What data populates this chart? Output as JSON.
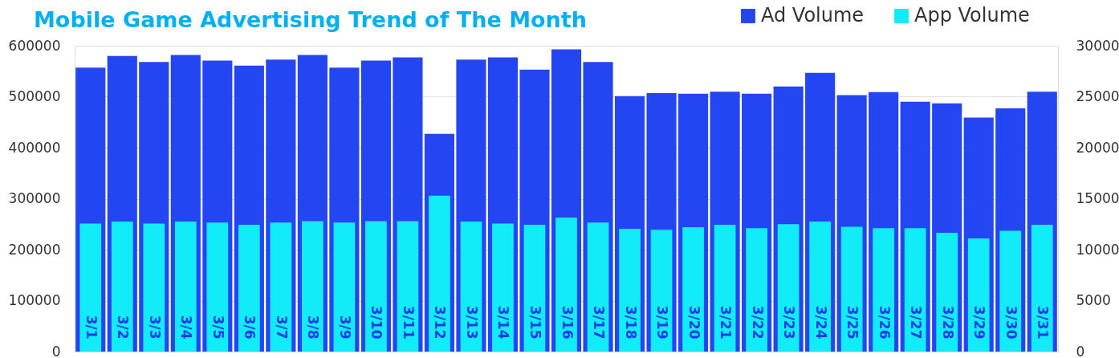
{
  "chart_data": {
    "type": "bar",
    "title": "Mobile Game Advertising Trend of The Month",
    "categories": [
      "3/1",
      "3/2",
      "3/3",
      "3/4",
      "3/5",
      "3/6",
      "3/7",
      "3/8",
      "3/9",
      "3/10",
      "3/11",
      "3/12",
      "3/13",
      "3/14",
      "3/15",
      "3/16",
      "3/17",
      "3/18",
      "3/19",
      "3/20",
      "3/21",
      "3/22",
      "3/23",
      "3/24",
      "3/25",
      "3/26",
      "3/27",
      "3/28",
      "3/29",
      "3/30",
      "3/31"
    ],
    "series": [
      {
        "name": "Ad Volume",
        "color": "#2446f2",
        "values": [
          557000,
          580000,
          568000,
          582000,
          571000,
          561000,
          573000,
          582000,
          557000,
          571000,
          577000,
          427000,
          573000,
          577000,
          553000,
          593000,
          568000,
          501000,
          507000,
          506000,
          510000,
          506000,
          520000,
          547000,
          503000,
          509000,
          490000,
          487000,
          459000,
          477000,
          510000
        ]
      },
      {
        "name": "App Volume",
        "color": "#12ecf9",
        "axis": "y2",
        "values": [
          12550,
          12750,
          12550,
          12750,
          12650,
          12450,
          12650,
          12800,
          12650,
          12800,
          12800,
          15300,
          12750,
          12550,
          12450,
          13150,
          12650,
          12050,
          11950,
          12200,
          12450,
          12100,
          12500,
          12750,
          12250,
          12100,
          12100,
          11650,
          11100,
          11850,
          12450
        ]
      }
    ],
    "ylim": [
      0,
      600000
    ],
    "yticks": [
      0,
      100000,
      200000,
      300000,
      400000,
      500000,
      600000
    ],
    "y2lim": [
      0,
      30000
    ],
    "y2ticks": [
      0,
      5000,
      10000,
      15000,
      20000,
      25000,
      30000
    ],
    "grid": "y",
    "legend": "top right"
  }
}
